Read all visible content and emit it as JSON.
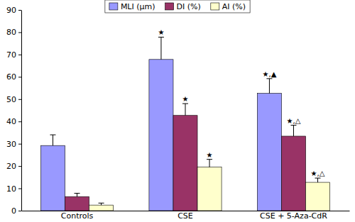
{
  "chart_data": {
    "type": "bar",
    "categories": [
      "Controls",
      "CSE",
      "CSE + 5-Aza-CdR"
    ],
    "series": [
      {
        "name": "MLI (μm)",
        "color": "#9999ff",
        "values": [
          29.2,
          67.8,
          52.6
        ],
        "errors": [
          4.8,
          10.0,
          6.6
        ],
        "annotations": [
          null,
          "★",
          "★,▲"
        ]
      },
      {
        "name": "DI (%)",
        "color": "#993366",
        "values": [
          6.3,
          42.7,
          33.4
        ],
        "errors": [
          1.5,
          5.3,
          4.9
        ],
        "annotations": [
          null,
          "★",
          "★,△"
        ]
      },
      {
        "name": "AI (%)",
        "color": "#ffffcc",
        "values": [
          2.5,
          19.5,
          12.7
        ],
        "errors": [
          0.9,
          3.5,
          1.9
        ],
        "annotations": [
          null,
          "★",
          "★,△"
        ]
      }
    ],
    "ylim": [
      0,
      90
    ],
    "yticks": [
      0,
      10,
      20,
      30,
      40,
      50,
      60,
      70,
      80,
      90
    ],
    "grid": false,
    "legend": "top"
  }
}
